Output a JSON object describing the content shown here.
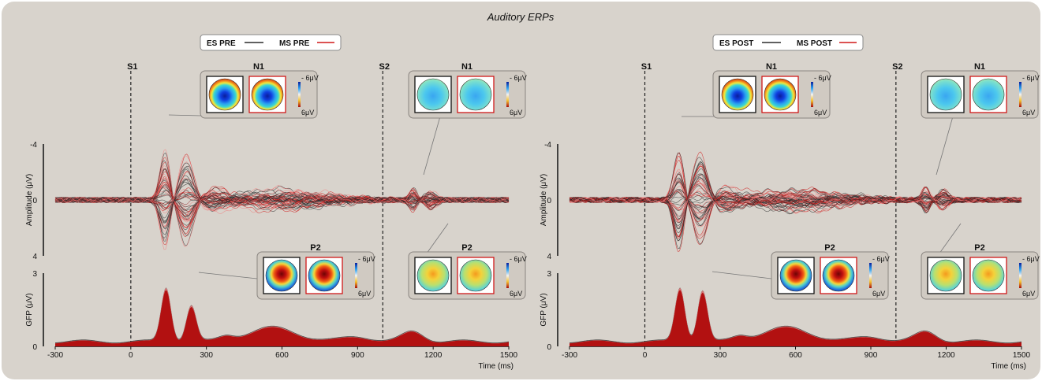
{
  "title": "Auditory ERPs",
  "colors": {
    "background": "#d8d3cc",
    "es": "#2b2b2b",
    "ms": "#d01818",
    "ms_light": "#f08080",
    "gfp_fill": "#b00c0c",
    "inset_bg": "#d0cac2"
  },
  "chart_data": [
    {
      "type": "line",
      "panel": "pre",
      "legend": {
        "es_label": "ES PRE",
        "ms_label": "MS PRE"
      },
      "markers": [
        {
          "label": "S1",
          "x": 0
        },
        {
          "label": "S2",
          "x": 1000
        }
      ],
      "xlabel": "Time (ms)",
      "xlim": [
        -300,
        1500
      ],
      "xticks": [
        "-300",
        "0",
        "300",
        "600",
        "900",
        "1200",
        "1500"
      ],
      "erp": {
        "ylabel": "Amplitude (μV)",
        "ylim": [
          4,
          -4
        ],
        "yticks": [
          "-4",
          "0",
          "4"
        ]
      },
      "gfp": {
        "ylabel": "GFP (μV)",
        "ylim": [
          0,
          3
        ],
        "yticks": [
          "3",
          "0"
        ],
        "peaks": [
          {
            "x": 140,
            "y": 2.3
          },
          {
            "x": 240,
            "y": 1.6
          },
          {
            "x": 560,
            "y": 0.7
          },
          {
            "x": 1120,
            "y": 0.55
          }
        ]
      },
      "topomaps": [
        {
          "component": "N1",
          "type": "negative",
          "scale_top": "- 6μV",
          "scale_bottom": "6μV"
        },
        {
          "component": "N1",
          "type": "weak_negative",
          "scale_top": "- 6μV",
          "scale_bottom": "6μV"
        },
        {
          "component": "P2",
          "type": "positive",
          "scale_top": "- 6μV",
          "scale_bottom": "6μV"
        },
        {
          "component": "P2",
          "type": "weak_positive",
          "scale_top": "- 6μV",
          "scale_bottom": "6μV"
        }
      ]
    },
    {
      "type": "line",
      "panel": "post",
      "legend": {
        "es_label": "ES POST",
        "ms_label": "MS POST"
      },
      "markers": [
        {
          "label": "S1",
          "x": 0
        },
        {
          "label": "S2",
          "x": 1000
        }
      ],
      "xlabel": "Time (ms)",
      "xlim": [
        -300,
        1500
      ],
      "xticks": [
        "-300",
        "0",
        "300",
        "600",
        "900",
        "1200",
        "1500"
      ],
      "erp": {
        "ylabel": "Amplitude (μV)",
        "ylim": [
          4,
          -4
        ],
        "yticks": [
          "-4",
          "0",
          "4"
        ]
      },
      "gfp": {
        "ylabel": "GFP (μV)",
        "ylim": [
          0,
          3
        ],
        "yticks": [
          "3",
          "0"
        ],
        "peaks": [
          {
            "x": 140,
            "y": 2.3
          },
          {
            "x": 230,
            "y": 2.2
          },
          {
            "x": 560,
            "y": 0.7
          },
          {
            "x": 1120,
            "y": 0.55
          }
        ]
      },
      "topomaps": [
        {
          "component": "N1",
          "type": "negative",
          "scale_top": "- 6μV",
          "scale_bottom": "6μV"
        },
        {
          "component": "N1",
          "type": "weak_negative",
          "scale_top": "- 6μV",
          "scale_bottom": "6μV"
        },
        {
          "component": "P2",
          "type": "positive",
          "scale_top": "- 6μV",
          "scale_bottom": "6μV"
        },
        {
          "component": "P2",
          "type": "weak_positive",
          "scale_top": "- 6μV",
          "scale_bottom": "6μV"
        }
      ]
    }
  ]
}
